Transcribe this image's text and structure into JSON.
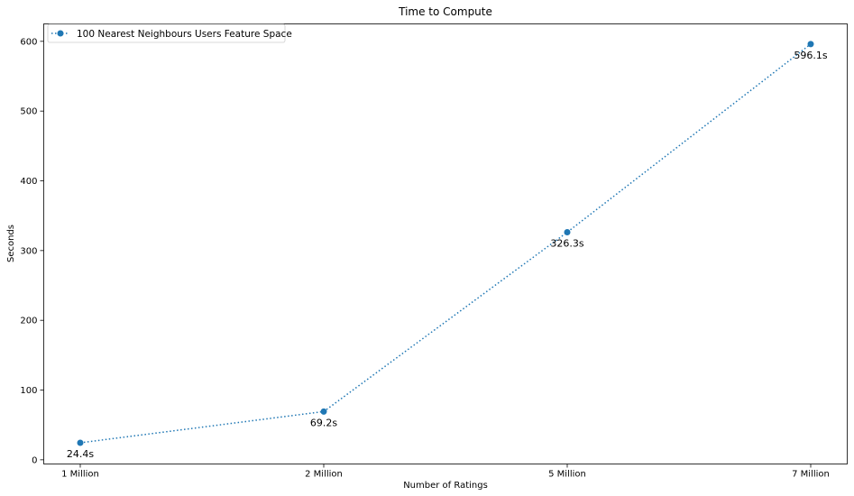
{
  "chart_data": {
    "type": "line",
    "title": "Time to Compute",
    "xlabel": "Number of Ratings",
    "ylabel": "Seconds",
    "categories": [
      "1 Million",
      "2 Million",
      "5 Million",
      "7 Million"
    ],
    "series": [
      {
        "name": "100 Nearest Neighbours Users Feature Space",
        "values": [
          24.4,
          69.2,
          326.3,
          596.1
        ],
        "labels": [
          "24.4s",
          "69.2s",
          "326.3s",
          "596.1s"
        ],
        "color": "#1f77b4",
        "line_style": "dotted",
        "marker": "circle"
      }
    ],
    "yticks": [
      0,
      100,
      200,
      300,
      400,
      500,
      600
    ],
    "ylim": [
      -6,
      625
    ],
    "grid": false,
    "legend_position": "top-left"
  }
}
